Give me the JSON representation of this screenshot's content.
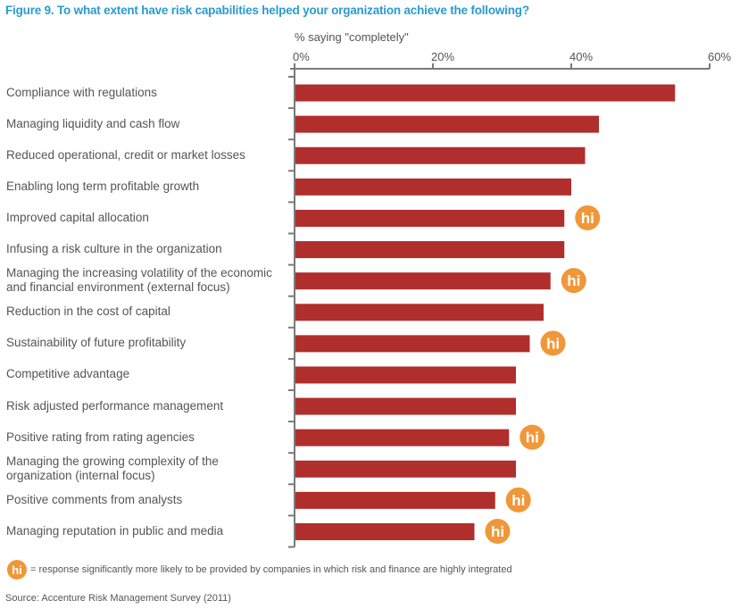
{
  "chart_data": {
    "type": "bar",
    "orientation": "horizontal",
    "title": "Figure 9. To what extent have risk capabilities helped your organization achieve the following?",
    "xlabel": "% saying \"completely\"",
    "ylabel": "",
    "xlim": [
      0,
      60
    ],
    "xticks": [
      "0%",
      "20%",
      "40%",
      "60%"
    ],
    "xtick_values": [
      0,
      20,
      40,
      60
    ],
    "axis_position": "top",
    "grid": false,
    "bar_color": "#b02e2b",
    "marker_color": "#f0973a",
    "marker_text": "hi",
    "categories": [
      [
        "Compliance with regulations"
      ],
      [
        "Managing liquidity and cash flow"
      ],
      [
        "Reduced operational, credit or market losses"
      ],
      [
        "Enabling long term profitable growth"
      ],
      [
        "Improved capital allocation"
      ],
      [
        "Infusing a risk culture in the organization"
      ],
      [
        "Managing the increasing volatility of the economic",
        "and financial environment (external focus)"
      ],
      [
        "Reduction in the cost of capital"
      ],
      [
        "Sustainability of future profitability"
      ],
      [
        "Competitive advantage"
      ],
      [
        "Risk adjusted performance management"
      ],
      [
        "Positive rating from rating agencies"
      ],
      [
        "Managing the growing complexity of the",
        "organization (internal focus)"
      ],
      [
        "Positive comments from analysts"
      ],
      [
        "Managing reputation in public and media"
      ]
    ],
    "values": [
      55,
      44,
      42,
      40,
      39,
      39,
      37,
      36,
      34,
      32,
      32,
      31,
      32,
      29,
      26
    ],
    "highlighted": [
      false,
      false,
      false,
      false,
      true,
      false,
      true,
      false,
      true,
      false,
      false,
      true,
      false,
      true,
      true
    ],
    "legend_text": "= response significantly more likely to be provided by companies in which risk and finance are highly integrated",
    "source": "Source: Accenture Risk Management Survey (2011)"
  }
}
